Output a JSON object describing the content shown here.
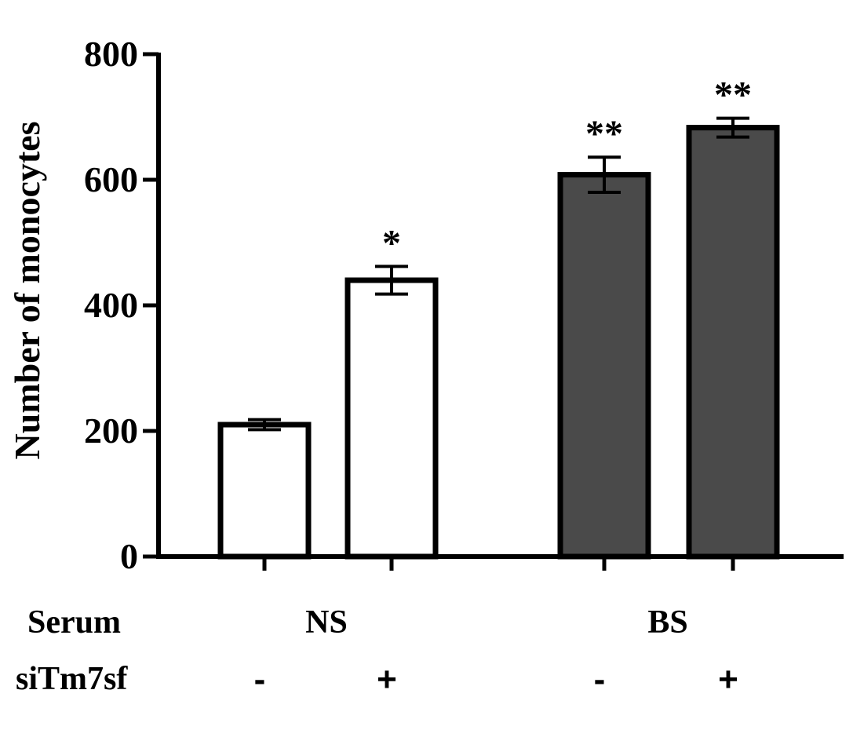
{
  "chart_data": {
    "type": "bar",
    "ylabel": "Number of monocytes",
    "ylim": [
      0,
      800
    ],
    "y_ticks": [
      "0",
      "200",
      "400",
      "600",
      "800"
    ],
    "bars": [
      {
        "serum": "NS",
        "siTm7sf": "-",
        "value": 210,
        "error": 8,
        "significance": "",
        "fill": "#ffffff"
      },
      {
        "serum": "NS",
        "siTm7sf": "+",
        "value": 440,
        "error": 22,
        "significance": "*",
        "fill": "#ffffff"
      },
      {
        "serum": "BS",
        "siTm7sf": "-",
        "value": 608,
        "error": 28,
        "significance": "**",
        "fill": "#4a4a4a"
      },
      {
        "serum": "BS",
        "siTm7sf": "+",
        "value": 683,
        "error": 15,
        "significance": "**",
        "fill": "#4a4a4a"
      }
    ],
    "groups": [
      "NS",
      "BS"
    ],
    "row_labels": {
      "serum": "Serum",
      "sitm7sf": "siTm7sf"
    },
    "sitm7sf_marks": [
      "-",
      "+",
      "-",
      "+"
    ],
    "colors": {
      "axis": "#000000",
      "ns_fill": "#ffffff",
      "bs_fill": "#4a4a4a"
    }
  }
}
